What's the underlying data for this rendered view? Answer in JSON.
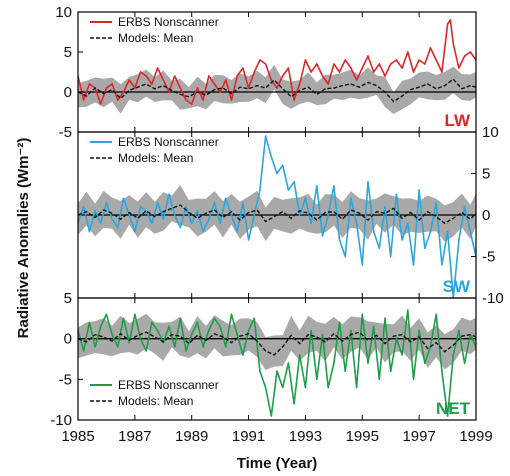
{
  "chart_data": {
    "type": "line",
    "xlabel": "Time (Year)",
    "ylabel": "Radiative Anomalies (Wm⁻²)",
    "xlim": [
      1985,
      1999
    ],
    "x_ticks": [
      "1985",
      "1987",
      "1989",
      "1991",
      "1993",
      "1995",
      "1997",
      "1999"
    ],
    "colors": {
      "LW": "#e0262b",
      "SW": "#2aa6de",
      "NET": "#1e9e48",
      "model_band": "#a9a9a9",
      "model_mean": "#111111"
    },
    "panels": [
      {
        "tag": "LW",
        "ylim": [
          -5,
          10
        ],
        "y_ticks": [
          "-5",
          "0",
          "5",
          "10"
        ],
        "y_axis_side": "left",
        "legend": [
          "ERBS Nonscanner",
          "Models: Mean"
        ],
        "series": [
          {
            "name": "ERBS Nonscanner",
            "x": [
              1985.0,
              1985.2,
              1985.4,
              1985.6,
              1985.8,
              1986.0,
              1986.2,
              1986.4,
              1986.6,
              1986.8,
              1987.0,
              1987.2,
              1987.4,
              1987.6,
              1987.8,
              1988.0,
              1988.2,
              1988.4,
              1988.6,
              1988.8,
              1989.0,
              1989.2,
              1989.4,
              1989.6,
              1989.8,
              1990.0,
              1990.2,
              1990.4,
              1990.6,
              1990.8,
              1991.0,
              1991.2,
              1991.4,
              1991.6,
              1991.8,
              1992.0,
              1992.2,
              1992.4,
              1992.6,
              1992.8,
              1993.0,
              1993.2,
              1993.4,
              1993.6,
              1993.8,
              1994.0,
              1994.2,
              1994.4,
              1994.6,
              1994.8,
              1995.0,
              1995.2,
              1995.4,
              1995.6,
              1995.8,
              1996.0,
              1996.2,
              1996.4,
              1996.6,
              1996.8,
              1997.0,
              1997.2,
              1997.4,
              1997.6,
              1997.8,
              1998.0,
              1998.1,
              1998.2,
              1998.4,
              1998.6,
              1998.8,
              1999.0
            ],
            "y": [
              2,
              -1,
              1,
              0.5,
              -1.5,
              0.5,
              1,
              -1,
              0,
              1.5,
              0.5,
              2.5,
              2,
              1,
              3,
              1.5,
              0,
              2,
              0.5,
              -1,
              -1.5,
              0.5,
              -1,
              2,
              1,
              0,
              1.5,
              -1,
              2,
              3,
              0.5,
              2.5,
              4,
              3.5,
              1.5,
              0.5,
              2,
              3,
              -1,
              1,
              4,
              2.5,
              3.5,
              2,
              1,
              3.5,
              2.5,
              4,
              3,
              1.5,
              3,
              4.5,
              2.5,
              3.5,
              2,
              3.5,
              4,
              3,
              5,
              2.5,
              4,
              3.5,
              5.5,
              4,
              2.5,
              8.5,
              9,
              6,
              3,
              4.5,
              5,
              4
            ]
          },
          {
            "name": "Models: Mean",
            "x": [
              1985.0,
              1985.3,
              1985.6,
              1985.9,
              1986.2,
              1986.5,
              1986.8,
              1987.1,
              1987.4,
              1987.7,
              1988.0,
              1988.3,
              1988.6,
              1988.9,
              1989.2,
              1989.5,
              1989.8,
              1990.1,
              1990.4,
              1990.7,
              1991.0,
              1991.3,
              1991.6,
              1991.9,
              1992.2,
              1992.5,
              1992.8,
              1993.1,
              1993.4,
              1993.7,
              1994.0,
              1994.3,
              1994.6,
              1994.9,
              1995.2,
              1995.5,
              1995.8,
              1996.1,
              1996.4,
              1996.7,
              1997.0,
              1997.3,
              1997.6,
              1997.9,
              1998.2,
              1998.5,
              1998.8,
              1999.0
            ],
            "y": [
              0,
              -0.5,
              0.5,
              -0.2,
              0.3,
              -0.8,
              0.2,
              0.6,
              1.0,
              0.4,
              0.8,
              0.2,
              -0.3,
              -0.6,
              0.0,
              -0.4,
              0.3,
              0.5,
              -0.2,
              0.6,
              0.4,
              0.8,
              0.5,
              1.5,
              0.4,
              -0.6,
              0.2,
              0.6,
              -0.3,
              0.4,
              0.5,
              0.8,
              1.0,
              0.6,
              1.2,
              0.8,
              0.0,
              -1.2,
              -0.5,
              0.3,
              0.6,
              1.0,
              0.4,
              0.8,
              1.6,
              0.4,
              0.8,
              0.6
            ]
          }
        ]
      },
      {
        "tag": "SW",
        "ylim": [
          -10,
          10
        ],
        "y_ticks": [
          "-10",
          "-5",
          "0",
          "5",
          "10"
        ],
        "y_axis_side": "right",
        "legend": [
          "ERBS Nonscanner",
          "Models: Mean"
        ],
        "series": [
          {
            "name": "ERBS Nonscanner",
            "x": [
              1985.0,
              1985.2,
              1985.4,
              1985.6,
              1985.8,
              1986.0,
              1986.2,
              1986.4,
              1986.6,
              1986.8,
              1987.0,
              1987.2,
              1987.4,
              1987.6,
              1987.8,
              1988.0,
              1988.2,
              1988.4,
              1988.6,
              1988.8,
              1989.0,
              1989.2,
              1989.4,
              1989.6,
              1989.8,
              1990.0,
              1990.2,
              1990.4,
              1990.6,
              1990.8,
              1991.0,
              1991.2,
              1991.4,
              1991.6,
              1991.8,
              1992.0,
              1992.2,
              1992.4,
              1992.6,
              1992.8,
              1993.0,
              1993.2,
              1993.4,
              1993.6,
              1993.8,
              1994.0,
              1994.2,
              1994.4,
              1994.6,
              1994.8,
              1995.0,
              1995.2,
              1995.4,
              1995.6,
              1995.8,
              1996.0,
              1996.2,
              1996.4,
              1996.6,
              1996.8,
              1997.0,
              1997.2,
              1997.4,
              1997.6,
              1997.8,
              1998.0,
              1998.2,
              1998.4,
              1998.6,
              1998.8,
              1999.0
            ],
            "y": [
              -1,
              1,
              -2,
              0.5,
              -1,
              1.5,
              -0.5,
              -1.5,
              2,
              0,
              -2,
              1,
              0.5,
              -1,
              1.5,
              -0.5,
              2.5,
              0,
              -1.5,
              1,
              -1,
              0.5,
              -2,
              -0.5,
              1.5,
              -1,
              2,
              0,
              -2,
              1.5,
              -3,
              0,
              3,
              9.5,
              7,
              5,
              6,
              3,
              4,
              0,
              2,
              -1,
              3.5,
              -2.5,
              0,
              3.5,
              -3,
              -5,
              2,
              -1,
              -6,
              4,
              -2,
              -4,
              1,
              -5,
              2.5,
              -3,
              -1,
              -6,
              3,
              -4,
              -2,
              1.5,
              -6,
              -2,
              -10,
              -3,
              1,
              -2,
              -5
            ]
          },
          {
            "name": "Models: Mean",
            "x": [
              1985.0,
              1985.3,
              1985.6,
              1985.9,
              1986.2,
              1986.5,
              1986.8,
              1987.1,
              1987.4,
              1987.7,
              1988.0,
              1988.3,
              1988.6,
              1988.9,
              1989.2,
              1989.5,
              1989.8,
              1990.1,
              1990.4,
              1990.7,
              1991.0,
              1991.3,
              1991.6,
              1991.9,
              1992.2,
              1992.5,
              1992.8,
              1993.1,
              1993.4,
              1993.7,
              1994.0,
              1994.3,
              1994.6,
              1994.9,
              1995.2,
              1995.5,
              1995.8,
              1996.1,
              1996.4,
              1996.7,
              1997.0,
              1997.3,
              1997.6,
              1997.9,
              1998.2,
              1998.5,
              1998.8,
              1999.0
            ],
            "y": [
              0,
              0.4,
              -0.3,
              0.6,
              0.2,
              -0.5,
              0.3,
              -0.4,
              0.5,
              -0.2,
              0.4,
              0.8,
              1.2,
              0.3,
              -0.4,
              0.2,
              0.6,
              -0.3,
              0.4,
              -0.6,
              0.3,
              0.6,
              -0.8,
              -0.2,
              0.4,
              -0.4,
              0.5,
              0.2,
              -0.6,
              0.3,
              0.4,
              -0.5,
              0.6,
              0.2,
              -0.6,
              0.4,
              0.2,
              0.8,
              -0.4,
              0.3,
              -0.6,
              0.4,
              -0.2,
              -1.0,
              -0.4,
              0.3,
              -0.5,
              0.2
            ]
          }
        ]
      },
      {
        "tag": "NET",
        "ylim": [
          -10,
          5
        ],
        "y_ticks": [
          "-10",
          "-5",
          "0",
          "5"
        ],
        "y_axis_side": "left",
        "legend": [
          "ERBS Nonscanner",
          "Models: Mean"
        ],
        "series": [
          {
            "name": "ERBS Nonscanner",
            "x": [
              1985.0,
              1985.2,
              1985.4,
              1985.6,
              1985.8,
              1986.0,
              1986.2,
              1986.4,
              1986.6,
              1986.8,
              1987.0,
              1987.2,
              1987.4,
              1987.6,
              1987.8,
              1988.0,
              1988.2,
              1988.4,
              1988.6,
              1988.8,
              1989.0,
              1989.2,
              1989.4,
              1989.6,
              1989.8,
              1990.0,
              1990.2,
              1990.4,
              1990.6,
              1990.8,
              1991.0,
              1991.2,
              1991.4,
              1991.6,
              1991.8,
              1992.0,
              1992.2,
              1992.4,
              1992.6,
              1992.8,
              1993.0,
              1993.2,
              1993.4,
              1993.6,
              1993.8,
              1994.0,
              1994.2,
              1994.4,
              1994.6,
              1994.8,
              1995.0,
              1995.2,
              1995.4,
              1995.6,
              1995.8,
              1996.0,
              1996.2,
              1996.4,
              1996.6,
              1996.8,
              1997.0,
              1997.2,
              1997.4,
              1997.6,
              1997.8,
              1998.0,
              1998.2,
              1998.4,
              1998.6,
              1998.8,
              1999.0
            ],
            "y": [
              1,
              -1.5,
              2,
              -1,
              1.5,
              3,
              0.5,
              -1,
              2.5,
              -0.5,
              3,
              0,
              -1.5,
              2,
              1,
              -0.5,
              1.5,
              -1,
              2.5,
              -1.5,
              0.5,
              2,
              -1,
              1,
              2.5,
              1.5,
              -1,
              3,
              0.5,
              -2,
              1,
              2.5,
              -4,
              -6,
              -9.5,
              -4,
              -6,
              -3,
              -8,
              -2,
              -6,
              1,
              -5,
              0.5,
              -6,
              -3,
              2,
              -4,
              1,
              -6,
              3,
              -3,
              1.5,
              -5,
              2.5,
              -4,
              0,
              -2,
              3.5,
              -5,
              1,
              -3,
              -1,
              3,
              -4,
              -9.5,
              -2,
              1,
              -3,
              0.5,
              -1
            ]
          },
          {
            "name": "Models: Mean",
            "x": [
              1985.0,
              1985.3,
              1985.6,
              1985.9,
              1986.2,
              1986.5,
              1986.8,
              1987.1,
              1987.4,
              1987.7,
              1988.0,
              1988.3,
              1988.6,
              1988.9,
              1989.2,
              1989.5,
              1989.8,
              1990.1,
              1990.4,
              1990.7,
              1991.0,
              1991.3,
              1991.6,
              1991.9,
              1992.2,
              1992.5,
              1992.8,
              1993.1,
              1993.4,
              1993.7,
              1994.0,
              1994.3,
              1994.6,
              1994.9,
              1995.2,
              1995.5,
              1995.8,
              1996.1,
              1996.4,
              1996.7,
              1997.0,
              1997.3,
              1997.6,
              1997.9,
              1998.2,
              1998.5,
              1998.8,
              1999.0
            ],
            "y": [
              0,
              -0.4,
              0.5,
              0.2,
              -0.3,
              0.6,
              -0.2,
              0.4,
              0.8,
              0.2,
              -0.4,
              0.5,
              0.3,
              -0.6,
              0.4,
              -0.2,
              0.6,
              0.2,
              -0.5,
              0.3,
              0.6,
              -0.3,
              -1.5,
              -2.0,
              -1.0,
              0.4,
              -0.6,
              0.5,
              0.2,
              -0.4,
              0.6,
              -0.3,
              0.5,
              0.8,
              -0.2,
              0.4,
              -0.6,
              0.3,
              0.5,
              -0.4,
              0.2,
              -1.2,
              -0.5,
              -1.6,
              -0.8,
              0.3,
              0.5,
              0.2
            ]
          }
        ]
      }
    ]
  }
}
